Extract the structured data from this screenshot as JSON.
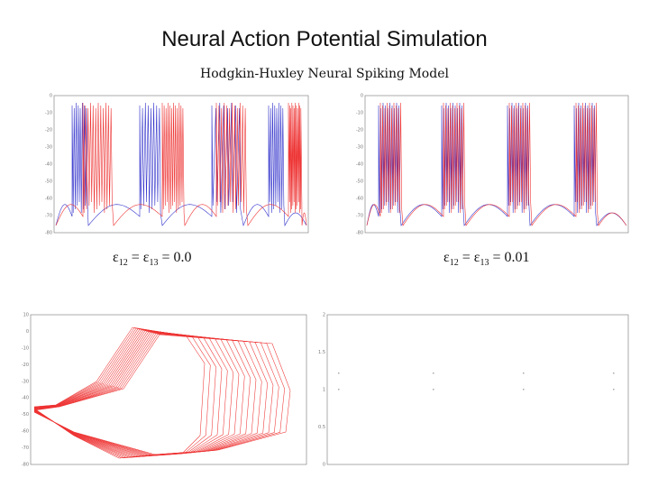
{
  "slide": {
    "title": "Neural Action Potential Simulation",
    "subtitle": "Hodgkin-Huxley Neural Spiking Model"
  },
  "captions": {
    "left": {
      "eps": "ε",
      "sub1": "12",
      "mid": " = ε",
      "sub2": "13",
      "value": " = 0.0"
    },
    "right": {
      "eps": "ε",
      "sub1": "12",
      "mid": " = ε",
      "sub2": "13",
      "value": " = 0.01"
    }
  },
  "colors": {
    "trace_red": "#ee3333",
    "trace_blue": "#3333cc",
    "axis": "#888888"
  },
  "panels": {
    "top_left": {
      "kind": "voltage-trace",
      "coupling": 0.0,
      "ylim": [
        -80,
        0
      ],
      "yticks": [
        "0",
        "-10",
        "-20",
        "-30",
        "-40",
        "-50",
        "-60",
        "-70",
        "-80"
      ]
    },
    "top_right": {
      "kind": "voltage-trace",
      "coupling": 0.01,
      "ylim": [
        -80,
        0
      ],
      "yticks": [
        "0",
        "-10",
        "-20",
        "-30",
        "-40",
        "-50",
        "-60",
        "-70",
        "-80"
      ]
    },
    "bottom_left": {
      "kind": "phase-portrait",
      "yticks": [
        "10",
        "0",
        "-10",
        "-20",
        "-30",
        "-40",
        "-50",
        "-60",
        "-70",
        "-80"
      ]
    },
    "bottom_right": {
      "kind": "spike-raster",
      "yticks": [
        "2",
        "1.5",
        "1",
        "0.5",
        "0"
      ]
    }
  }
}
